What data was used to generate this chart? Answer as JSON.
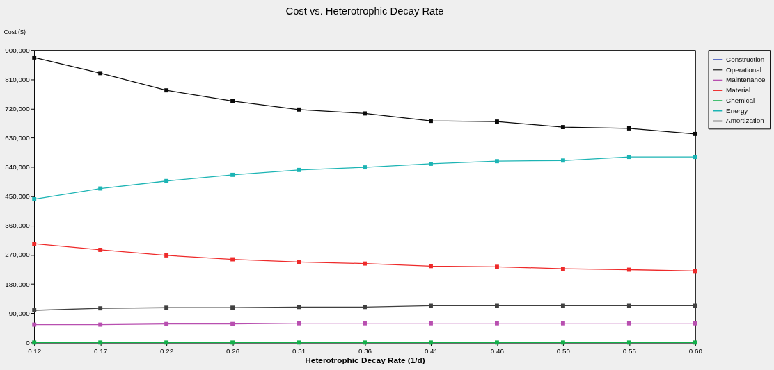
{
  "chart_data": {
    "type": "line",
    "title": "Cost vs. Heterotrophic Decay Rate",
    "xlabel": "Heterotrophic Decay Rate (1/d)",
    "ylabel": "Cost ($)",
    "categories": [
      "0.12",
      "0.17",
      "0.22",
      "0.26",
      "0.31",
      "0.36",
      "0.41",
      "0.46",
      "0.50",
      "0.55",
      "0.60"
    ],
    "ylim": [
      0,
      900000
    ],
    "yticks": [
      {
        "value": 0,
        "label": "0"
      },
      {
        "value": 90000,
        "label": "90,000"
      },
      {
        "value": 180000,
        "label": "180,000"
      },
      {
        "value": 270000,
        "label": "270,000"
      },
      {
        "value": 360000,
        "label": "360,000"
      },
      {
        "value": 450000,
        "label": "450,000"
      },
      {
        "value": 540000,
        "label": "540,000"
      },
      {
        "value": 630000,
        "label": "630,000"
      },
      {
        "value": 720000,
        "label": "720,000"
      },
      {
        "value": 810000,
        "label": "810,000"
      },
      {
        "value": 900000,
        "label": "900,000"
      }
    ],
    "grid": false,
    "legend": "right",
    "marker": "square",
    "line_style": "solid",
    "series": [
      {
        "name": "Construction",
        "color": "#3a4fb8",
        "values": [
          null,
          null,
          null,
          null,
          null,
          null,
          null,
          null,
          null,
          null,
          null
        ]
      },
      {
        "name": "Operational",
        "color": "#404040",
        "values": [
          99000,
          105000,
          107000,
          107000,
          109000,
          109000,
          113000,
          113000,
          113000,
          113000,
          113000
        ]
      },
      {
        "name": "Maintenance",
        "color": "#b84fb0",
        "values": [
          55000,
          55000,
          57000,
          57000,
          59000,
          59000,
          59000,
          59000,
          59000,
          59000,
          59000
        ]
      },
      {
        "name": "Material",
        "color": "#ee2a2a",
        "values": [
          304000,
          285000,
          268000,
          256000,
          248000,
          243000,
          235000,
          233000,
          227000,
          224000,
          220000
        ]
      },
      {
        "name": "Chemical",
        "color": "#12b04a",
        "values": [
          0,
          0,
          0,
          0,
          0,
          0,
          0,
          0,
          0,
          0,
          0
        ]
      },
      {
        "name": "Energy",
        "color": "#1cb4b4",
        "values": [
          441000,
          474000,
          497000,
          516000,
          531000,
          539000,
          550000,
          558000,
          560000,
          571000,
          571000
        ]
      },
      {
        "name": "Amortization",
        "color": "#0a0a0a",
        "values": [
          877000,
          829000,
          776000,
          743000,
          717000,
          705000,
          682000,
          680000,
          663000,
          659000,
          642000
        ]
      }
    ]
  }
}
